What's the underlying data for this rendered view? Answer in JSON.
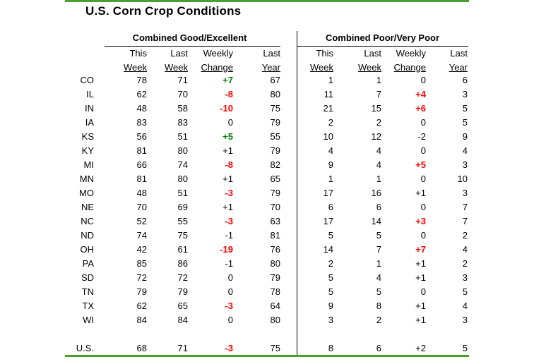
{
  "title": "U.S. Corn Crop Conditions",
  "colors": {
    "accent_green_rule": "#4aa02c",
    "positive_change_green": "#008000",
    "negative_change_red": "#ff0000",
    "text": "#000000",
    "background": "#ffffff"
  },
  "sections": {
    "left_title": "Combined Good/Excellent",
    "right_title": "Combined Poor/Very Poor"
  },
  "column_headers": {
    "ge_this_1": "This",
    "ge_this_2": "Week",
    "ge_last_1": "Last",
    "ge_last_2": "Week",
    "ge_change_1": "Weekly",
    "ge_change_2": "Change",
    "ge_year_1": "Last",
    "ge_year_2": "Year",
    "pv_this_1": "This",
    "pv_this_2": "Week",
    "pv_last_1": "Last",
    "pv_last_2": "Week",
    "pv_change_1": "Weekly",
    "pv_change_2": "Change",
    "pv_year_1": "Last",
    "pv_year_2": "Year"
  },
  "chart_data": {
    "type": "table",
    "title": "U.S. Corn Crop Conditions",
    "column_groups": [
      "Combined Good/Excellent",
      "Combined Poor/Very Poor"
    ],
    "group_columns": [
      "This Week",
      "Last Week",
      "Weekly Change",
      "Last Year"
    ],
    "rows": [
      {
        "state": "CO",
        "ge_this": "78",
        "ge_last": "71",
        "ge_change": "+7",
        "ge_change_color": "green",
        "ge_year": "67",
        "pv_this": "1",
        "pv_last": "1",
        "pv_change": "0",
        "pv_change_color": "black",
        "pv_year": "6"
      },
      {
        "state": "IL",
        "ge_this": "62",
        "ge_last": "70",
        "ge_change": "-8",
        "ge_change_color": "red",
        "ge_year": "80",
        "pv_this": "11",
        "pv_last": "7",
        "pv_change": "+4",
        "pv_change_color": "red",
        "pv_year": "3"
      },
      {
        "state": "IN",
        "ge_this": "48",
        "ge_last": "58",
        "ge_change": "-10",
        "ge_change_color": "red",
        "ge_year": "75",
        "pv_this": "21",
        "pv_last": "15",
        "pv_change": "+6",
        "pv_change_color": "red",
        "pv_year": "5"
      },
      {
        "state": "IA",
        "ge_this": "83",
        "ge_last": "83",
        "ge_change": "0",
        "ge_change_color": "black",
        "ge_year": "79",
        "pv_this": "2",
        "pv_last": "2",
        "pv_change": "0",
        "pv_change_color": "black",
        "pv_year": "5"
      },
      {
        "state": "KS",
        "ge_this": "56",
        "ge_last": "51",
        "ge_change": "+5",
        "ge_change_color": "green",
        "ge_year": "55",
        "pv_this": "10",
        "pv_last": "12",
        "pv_change": "-2",
        "pv_change_color": "black",
        "pv_year": "9"
      },
      {
        "state": "KY",
        "ge_this": "81",
        "ge_last": "80",
        "ge_change": "+1",
        "ge_change_color": "black",
        "ge_year": "79",
        "pv_this": "4",
        "pv_last": "4",
        "pv_change": "0",
        "pv_change_color": "black",
        "pv_year": "4"
      },
      {
        "state": "MI",
        "ge_this": "66",
        "ge_last": "74",
        "ge_change": "-8",
        "ge_change_color": "red",
        "ge_year": "82",
        "pv_this": "9",
        "pv_last": "4",
        "pv_change": "+5",
        "pv_change_color": "red",
        "pv_year": "3"
      },
      {
        "state": "MN",
        "ge_this": "81",
        "ge_last": "80",
        "ge_change": "+1",
        "ge_change_color": "black",
        "ge_year": "65",
        "pv_this": "1",
        "pv_last": "1",
        "pv_change": "0",
        "pv_change_color": "black",
        "pv_year": "10"
      },
      {
        "state": "MO",
        "ge_this": "48",
        "ge_last": "51",
        "ge_change": "-3",
        "ge_change_color": "red",
        "ge_year": "79",
        "pv_this": "17",
        "pv_last": "16",
        "pv_change": "+1",
        "pv_change_color": "black",
        "pv_year": "3"
      },
      {
        "state": "NE",
        "ge_this": "70",
        "ge_last": "69",
        "ge_change": "+1",
        "ge_change_color": "black",
        "ge_year": "70",
        "pv_this": "6",
        "pv_last": "6",
        "pv_change": "0",
        "pv_change_color": "black",
        "pv_year": "7"
      },
      {
        "state": "NC",
        "ge_this": "52",
        "ge_last": "55",
        "ge_change": "-3",
        "ge_change_color": "red",
        "ge_year": "63",
        "pv_this": "17",
        "pv_last": "14",
        "pv_change": "+3",
        "pv_change_color": "red",
        "pv_year": "7"
      },
      {
        "state": "ND",
        "ge_this": "74",
        "ge_last": "75",
        "ge_change": "-1",
        "ge_change_color": "black",
        "ge_year": "81",
        "pv_this": "5",
        "pv_last": "5",
        "pv_change": "0",
        "pv_change_color": "black",
        "pv_year": "2"
      },
      {
        "state": "OH",
        "ge_this": "42",
        "ge_last": "61",
        "ge_change": "-19",
        "ge_change_color": "red",
        "ge_year": "76",
        "pv_this": "14",
        "pv_last": "7",
        "pv_change": "+7",
        "pv_change_color": "red",
        "pv_year": "4"
      },
      {
        "state": "PA",
        "ge_this": "85",
        "ge_last": "86",
        "ge_change": "-1",
        "ge_change_color": "black",
        "ge_year": "80",
        "pv_this": "2",
        "pv_last": "1",
        "pv_change": "+1",
        "pv_change_color": "black",
        "pv_year": "2"
      },
      {
        "state": "SD",
        "ge_this": "72",
        "ge_last": "72",
        "ge_change": "0",
        "ge_change_color": "black",
        "ge_year": "79",
        "pv_this": "5",
        "pv_last": "4",
        "pv_change": "+1",
        "pv_change_color": "black",
        "pv_year": "3"
      },
      {
        "state": "TN",
        "ge_this": "79",
        "ge_last": "79",
        "ge_change": "0",
        "ge_change_color": "black",
        "ge_year": "78",
        "pv_this": "5",
        "pv_last": "5",
        "pv_change": "0",
        "pv_change_color": "black",
        "pv_year": "5"
      },
      {
        "state": "TX",
        "ge_this": "62",
        "ge_last": "65",
        "ge_change": "-3",
        "ge_change_color": "red",
        "ge_year": "64",
        "pv_this": "9",
        "pv_last": "8",
        "pv_change": "+1",
        "pv_change_color": "black",
        "pv_year": "4"
      },
      {
        "state": "WI",
        "ge_this": "84",
        "ge_last": "84",
        "ge_change": "0",
        "ge_change_color": "black",
        "ge_year": "80",
        "pv_this": "3",
        "pv_last": "2",
        "pv_change": "+1",
        "pv_change_color": "black",
        "pv_year": "3"
      }
    ]
  },
  "us_row": {
    "state": "U.S.",
    "ge_this": "68",
    "ge_last": "71",
    "ge_change": "-3",
    "ge_change_color": "red",
    "ge_year": "75",
    "pv_this": "8",
    "pv_last": "6",
    "pv_change": "+2",
    "pv_change_color": "black",
    "pv_year": "5"
  }
}
